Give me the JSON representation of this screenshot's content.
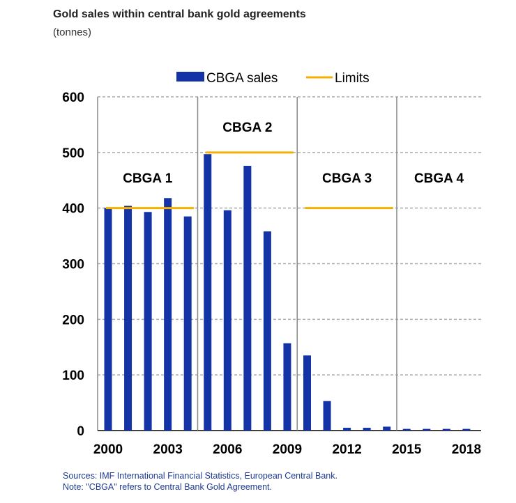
{
  "header": {
    "title": "Gold sales within central bank gold agreements",
    "subtitle": "(tonnes)"
  },
  "footer": {
    "source": "Sources: IMF International Financial Statistics, European Central Bank.",
    "note": "Note: \"CBGA\" refers to Central Bank Gold Agreement."
  },
  "chart_data": {
    "type": "bar",
    "title": "Gold sales within central bank gold agreements",
    "ylabel": "tonnes",
    "xlabel": "",
    "ylim": [
      0,
      600
    ],
    "yticks": [
      0,
      100,
      200,
      300,
      400,
      500,
      600
    ],
    "xtick_labels": [
      "2000",
      "2003",
      "2006",
      "2009",
      "2012",
      "2015",
      "2018"
    ],
    "grid": true,
    "legend_position": "top",
    "colors": {
      "bar": "#1433a6",
      "limit": "#f5b000",
      "grid": "#aaaaaa",
      "divider": "#888888"
    },
    "series": [
      {
        "name": "CBGA sales",
        "type": "bar",
        "categories": [
          "2000",
          "2001",
          "2002",
          "2003",
          "2004",
          "2005",
          "2006",
          "2007",
          "2008",
          "2009",
          "2010",
          "2011",
          "2012",
          "2013",
          "2014",
          "2015",
          "2016",
          "2017",
          "2018"
        ],
        "values": [
          400,
          404,
          393,
          418,
          385,
          497,
          396,
          476,
          358,
          157,
          135,
          53,
          5,
          5,
          7,
          3,
          3,
          3,
          3
        ]
      },
      {
        "name": "Limits",
        "type": "line",
        "segments": [
          {
            "agreement": "CBGA 1",
            "from": "2000",
            "to": "2004",
            "value": 400
          },
          {
            "agreement": "CBGA 2",
            "from": "2005",
            "to": "2009",
            "value": 500
          },
          {
            "agreement": "CBGA 3",
            "from": "2010",
            "to": "2014",
            "value": 400
          }
        ]
      }
    ],
    "periods": [
      {
        "label": "CBGA 1",
        "from": "2000",
        "to": "2004"
      },
      {
        "label": "CBGA 2",
        "from": "2005",
        "to": "2009"
      },
      {
        "label": "CBGA 3",
        "from": "2010",
        "to": "2014"
      },
      {
        "label": "CBGA 4",
        "from": "2015",
        "to": "2019"
      }
    ]
  }
}
